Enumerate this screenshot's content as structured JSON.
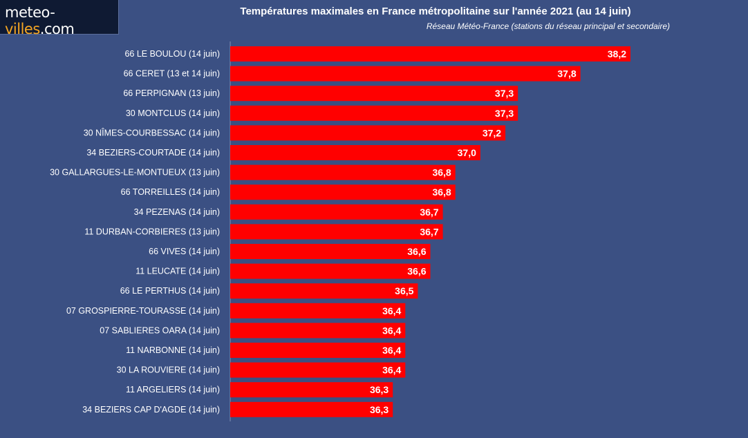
{
  "logo": {
    "part1": "meteo-",
    "part2": "villes",
    "part3": ".com"
  },
  "colors": {
    "background": "#3b5083",
    "bar": "#ff0000",
    "axis": "#7f8fb5"
  },
  "chart_data": {
    "type": "bar",
    "orientation": "horizontal",
    "title": "Températures maximales en France métropolitaine sur l'année 2021 (au 14 juin)",
    "subtitle": "Réseau Météo-France (stations du réseau principal et secondaire)",
    "categories": [
      "66 LE BOULOU (14 juin)",
      "66 CERET (13 et 14 juin)",
      "66 PERPIGNAN (13 juin)",
      "30 MONTCLUS (14 juin)",
      "30 NÎMES-COURBESSAC (14 juin)",
      "34 BEZIERS-COURTADE (14 juin)",
      "30 GALLARGUES-LE-MONTUEUX (13 juin)",
      "66 TORREILLES (14 juin)",
      "34 PEZENAS (14 juin)",
      "11 DURBAN-CORBIERES (13 juin)",
      "66 VIVES (14 juin)",
      "11 LEUCATE (14 juin)",
      "66 LE PERTHUS (14 juin)",
      "07 GROSPIERRE-TOURASSE (14 juin)",
      "07 SABLIERES OARA (14 juin)",
      "11 NARBONNE (14 juin)",
      "30 LA ROUVIERE (14 juin)",
      "11 ARGELIERS (14 juin)",
      "34 BEZIERS CAP D'AGDE (14 juin)"
    ],
    "values": [
      38.2,
      37.8,
      37.3,
      37.3,
      37.2,
      37.0,
      36.8,
      36.8,
      36.7,
      36.7,
      36.6,
      36.6,
      36.5,
      36.4,
      36.4,
      36.4,
      36.4,
      36.3,
      36.3
    ],
    "value_labels": [
      "38,2",
      "37,8",
      "37,3",
      "37,3",
      "37,2",
      "37,0",
      "36,8",
      "36,8",
      "36,7",
      "36,7",
      "36,6",
      "36,6",
      "36,5",
      "36,4",
      "36,4",
      "36,4",
      "36,4",
      "36,3",
      "36,3"
    ],
    "xlim": [
      35.0,
      38.5
    ],
    "grid": false,
    "legend": "none"
  }
}
